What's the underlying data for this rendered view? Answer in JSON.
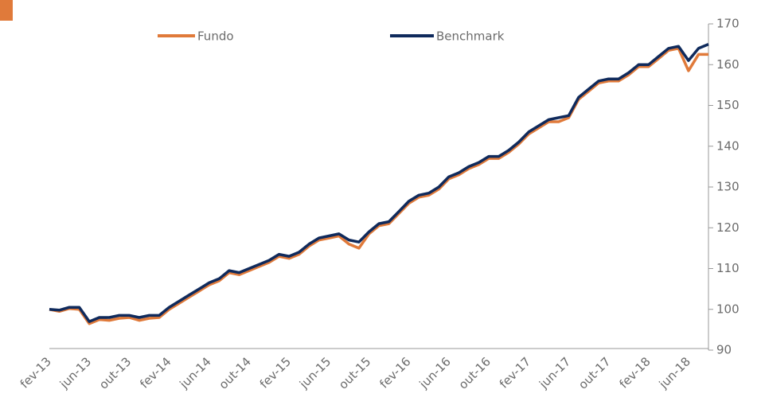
{
  "chart_data": {
    "type": "line",
    "categories": [
      "fev-13",
      null,
      null,
      null,
      "jun-13",
      null,
      null,
      null,
      "out-13",
      null,
      null,
      null,
      "fev-14",
      null,
      null,
      null,
      "jun-14",
      null,
      null,
      null,
      "out-14",
      null,
      null,
      null,
      "fev-15",
      null,
      null,
      null,
      "jun-15",
      null,
      null,
      null,
      "out-15",
      null,
      null,
      null,
      "fev-16",
      null,
      null,
      null,
      "jun-16",
      null,
      null,
      null,
      "out-16",
      null,
      null,
      null,
      "fev-17",
      null,
      null,
      null,
      "jun-17",
      null,
      null,
      null,
      "out-17",
      null,
      null,
      null,
      "fev-18",
      null,
      null,
      null,
      "jun-18",
      null,
      null
    ],
    "series": [
      {
        "name": "Fundo",
        "color": "#e07a3a",
        "values": [
          100,
          99.5,
          100.2,
          100,
          96.5,
          97.5,
          97.3,
          97.8,
          98,
          97.3,
          97.8,
          98,
          100,
          101.5,
          103,
          104.5,
          106,
          107,
          109,
          108.5,
          109.5,
          110.5,
          111.5,
          113,
          112.5,
          113.5,
          115.5,
          117,
          117.5,
          118,
          116,
          115,
          118.5,
          120.5,
          121,
          123.5,
          126,
          127.5,
          128,
          129.5,
          132,
          133,
          134.5,
          135.5,
          137,
          137,
          138.5,
          140.5,
          143,
          144.5,
          146,
          146,
          147,
          151.5,
          153.5,
          155.5,
          156,
          156,
          157.5,
          159.5,
          159.5,
          161.5,
          163.5,
          164,
          158.5,
          162.5,
          162.5
        ]
      },
      {
        "name": "Benchmark",
        "color": "#0f2a5c",
        "values": [
          100,
          99.8,
          100.5,
          100.5,
          97,
          98,
          98,
          98.5,
          98.5,
          98,
          98.5,
          98.5,
          100.5,
          102,
          103.5,
          105,
          106.5,
          107.5,
          109.5,
          109,
          110,
          111,
          112,
          113.5,
          113,
          114,
          116,
          117.5,
          118,
          118.5,
          117,
          116.5,
          119,
          121,
          121.5,
          124,
          126.5,
          128,
          128.5,
          130,
          132.5,
          133.5,
          135,
          136,
          137.5,
          137.5,
          139,
          141,
          143.5,
          145,
          146.5,
          147,
          147.5,
          152,
          154,
          156,
          156.5,
          156.5,
          158,
          160,
          160,
          162,
          164,
          164.5,
          161,
          164,
          165
        ]
      }
    ],
    "ylim": [
      90,
      170
    ],
    "yticks": [
      90,
      100,
      110,
      120,
      130,
      140,
      150,
      160,
      170
    ],
    "grid": false,
    "legend": "top"
  }
}
